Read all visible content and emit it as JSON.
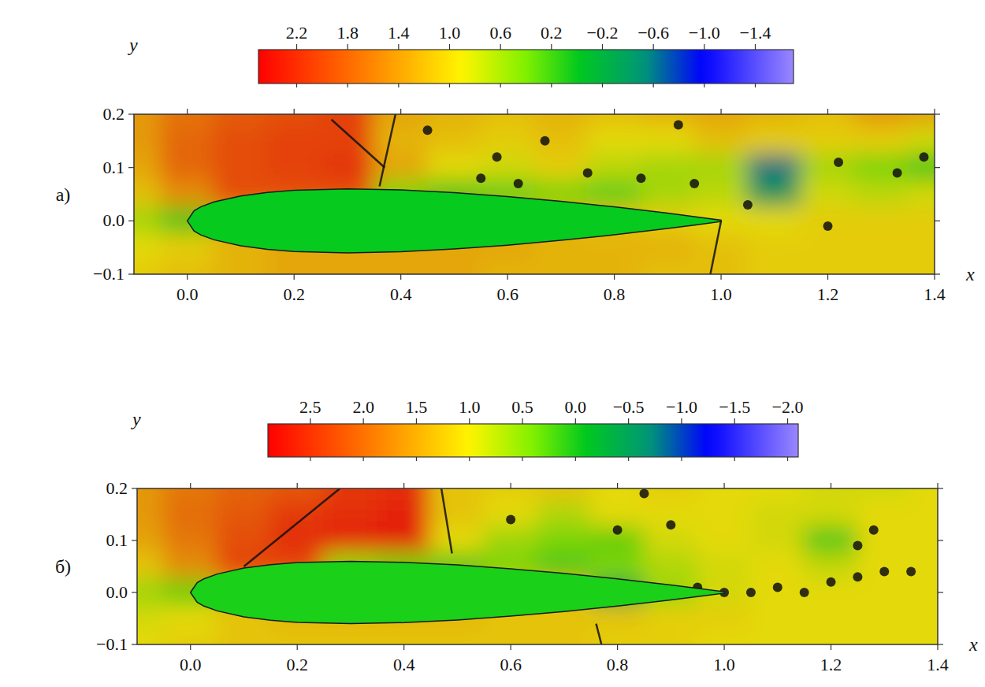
{
  "chart_data": [
    {
      "type": "heatmap",
      "panel": "а)",
      "x_label": "x",
      "y_label": "y",
      "xlim": [
        -0.1,
        1.4
      ],
      "ylim": [
        -0.1,
        0.2
      ],
      "xticks": [
        {
          "value": 0,
          "label": "0.0"
        },
        0.2,
        0.4,
        0.6,
        0.8,
        {
          "value": 1,
          "label": "1.0"
        },
        1.2,
        1.4
      ],
      "yticks": [
        {
          "value": -0.1,
          "label": "−0.1"
        },
        {
          "value": 0,
          "label": "0.0"
        },
        0.1,
        0.2
      ],
      "grid": false,
      "x": [
        -0.1,
        0,
        0.1,
        0.2,
        0.3,
        0.4,
        0.5,
        0.6,
        0.7,
        0.8,
        0.9,
        1.0,
        1.1,
        1.2,
        1.3,
        1.4
      ],
      "y": [
        0.2,
        0.15,
        0.1,
        0.05,
        0,
        -0.05,
        -0.1
      ],
      "values": [
        [
          1.4,
          1.7,
          1.9,
          2.0,
          2.1,
          1.3,
          1.2,
          1.1,
          1.2,
          1.1,
          1.2,
          1.3,
          1.2,
          1.1,
          1.4,
          1.3
        ],
        [
          1.4,
          1.8,
          2.0,
          2.1,
          2.1,
          1.2,
          1.1,
          1.0,
          1.1,
          0.9,
          0.9,
          1.1,
          1.0,
          1.0,
          1.0,
          0.8
        ],
        [
          1.3,
          1.8,
          2.0,
          2.1,
          2.2,
          1.3,
          0.9,
          0.8,
          1.0,
          0.7,
          0.6,
          0.6,
          -0.6,
          0.6,
          0.4,
          0.2
        ],
        [
          1.1,
          1.5,
          2.0,
          2.0,
          2.0,
          0.4,
          0.2,
          0.3,
          0.4,
          0.3,
          0.6,
          0.7,
          -0.4,
          0.8,
          0.7,
          0.8
        ],
        [
          0.6,
          0.2,
          1.3,
          1.3,
          1.3,
          1.3,
          1.2,
          1.2,
          1.2,
          1.1,
          1.0,
          0.9,
          0.9,
          1.0,
          1.0,
          1.0
        ],
        [
          0.9,
          1.0,
          1.2,
          1.3,
          1.3,
          1.3,
          1.3,
          1.3,
          1.2,
          1.2,
          1.2,
          1.1,
          1.0,
          1.0,
          1.0,
          1.0
        ],
        [
          1.0,
          1.1,
          1.2,
          1.3,
          1.3,
          1.3,
          1.3,
          1.2,
          1.2,
          1.2,
          1.1,
          1.1,
          1.0,
          1.0,
          1.0,
          1.0
        ]
      ],
      "color_range": [
        2.5,
        -1.7
      ],
      "color_ticks": [
        2.2,
        1.8,
        1.4,
        {
          "value": 1,
          "label": "1.0"
        },
        0.6,
        0.2,
        {
          "value": -0.2,
          "label": "−0.2"
        },
        {
          "value": -0.6,
          "label": "−0.6"
        },
        {
          "value": -1,
          "label": "−1.0"
        },
        {
          "value": -1.4,
          "label": "−1.4"
        }
      ],
      "airfoil": {
        "x": [
          0,
          0.0125,
          0.025,
          0.05,
          0.1,
          0.15,
          0.2,
          0.3,
          0.4,
          0.5,
          0.6,
          0.7,
          0.8,
          0.9,
          0.95,
          1.0
        ],
        "upper": [
          0,
          0.0189,
          0.0262,
          0.0355,
          0.0468,
          0.0534,
          0.0574,
          0.06,
          0.058,
          0.0529,
          0.0456,
          0.0366,
          0.0262,
          0.0145,
          0.0081,
          0.0013
        ],
        "lower": [
          0,
          -0.0189,
          -0.0262,
          -0.0355,
          -0.0468,
          -0.0534,
          -0.0574,
          -0.06,
          -0.058,
          -0.0529,
          -0.0456,
          -0.0366,
          -0.0262,
          -0.0145,
          -0.0081,
          -0.0013
        ],
        "value": 0
      },
      "shocks": [
        {
          "x": [
            0.39,
            0.36
          ],
          "y": [
            0.2,
            0.065
          ]
        },
        {
          "x": [
            0.27,
            0.37
          ],
          "y": [
            0.19,
            0.1
          ]
        },
        {
          "x": [
            0.98,
            1.0
          ],
          "y": [
            -0.1,
            0.0
          ]
        }
      ],
      "vortices": {
        "x": [
          0.45,
          0.55,
          0.58,
          0.62,
          0.67,
          0.75,
          0.85,
          0.95,
          1.05,
          1.2,
          1.22,
          1.33,
          1.38,
          0.92
        ],
        "y": [
          0.17,
          0.08,
          0.12,
          0.07,
          0.15,
          0.09,
          0.08,
          0.07,
          0.03,
          -0.01,
          0.11,
          0.09,
          0.12,
          0.18
        ]
      }
    },
    {
      "type": "heatmap",
      "panel": "б)",
      "x_label": "x",
      "y_label": "y",
      "xlim": [
        -0.1,
        1.4
      ],
      "ylim": [
        -0.1,
        0.2
      ],
      "xticks": [
        {
          "value": 0,
          "label": "0.0"
        },
        0.2,
        0.4,
        0.6,
        0.8,
        {
          "value": 1,
          "label": "1.0"
        },
        1.2,
        1.4
      ],
      "yticks": [
        {
          "value": -0.1,
          "label": "−0.1"
        },
        {
          "value": 0,
          "label": "0.0"
        },
        0.1,
        0.2
      ],
      "grid": false,
      "x": [
        -0.1,
        0,
        0.1,
        0.2,
        0.3,
        0.4,
        0.5,
        0.6,
        0.7,
        0.8,
        0.9,
        1.0,
        1.1,
        1.2,
        1.3,
        1.4
      ],
      "y": [
        0.2,
        0.15,
        0.1,
        0.05,
        0,
        -0.05,
        -0.1
      ],
      "values": [
        [
          1.6,
          1.9,
          2.1,
          2.2,
          2.5,
          2.6,
          1.2,
          1.1,
          1.2,
          1.0,
          1.1,
          1.0,
          1.0,
          0.9,
          0.9,
          1.0
        ],
        [
          1.6,
          2.0,
          2.2,
          2.5,
          2.6,
          2.7,
          1.2,
          1.0,
          0.7,
          1.0,
          1.0,
          1.0,
          0.9,
          0.9,
          1.0,
          1.0
        ],
        [
          1.5,
          1.9,
          2.3,
          2.6,
          2.7,
          2.8,
          1.0,
          0.6,
          0.4,
          0.3,
          0.9,
          1.0,
          0.9,
          0.2,
          1.0,
          1.0
        ],
        [
          1.2,
          1.7,
          2.4,
          2.4,
          0.5,
          0.3,
          0.2,
          0.4,
          0.2,
          0.4,
          0.7,
          0.9,
          1.0,
          0.8,
          1.0,
          1.0
        ],
        [
          0.6,
          0.3,
          1.4,
          1.4,
          1.4,
          1.3,
          1.3,
          1.2,
          1.2,
          -0.3,
          0.6,
          0.9,
          1.0,
          1.0,
          1.0,
          1.0
        ],
        [
          0.9,
          1.0,
          1.2,
          1.3,
          1.3,
          1.3,
          1.3,
          1.2,
          1.2,
          1.2,
          1.1,
          1.1,
          1.0,
          1.0,
          1.0,
          1.0
        ],
        [
          1.0,
          1.1,
          1.2,
          1.2,
          1.2,
          1.2,
          1.2,
          1.2,
          1.2,
          1.1,
          1.1,
          1.0,
          1.0,
          1.0,
          1.0,
          1.0
        ]
      ],
      "color_range": [
        2.9,
        -2.1
      ],
      "color_ticks": [
        2.5,
        {
          "value": 2,
          "label": "2.0"
        },
        1.5,
        {
          "value": 1,
          "label": "1.0"
        },
        0.5,
        {
          "value": 0,
          "label": "0.0"
        },
        {
          "value": -0.5,
          "label": "−0.5"
        },
        {
          "value": -1,
          "label": "−1.0"
        },
        {
          "value": -1.5,
          "label": "−1.5"
        },
        {
          "value": -2,
          "label": "−2.0"
        }
      ],
      "airfoil": {
        "x": [
          0,
          0.0125,
          0.025,
          0.05,
          0.1,
          0.15,
          0.2,
          0.3,
          0.4,
          0.5,
          0.6,
          0.7,
          0.8,
          0.9,
          0.95,
          1.0
        ],
        "upper": [
          0,
          0.0189,
          0.0262,
          0.0355,
          0.0468,
          0.0534,
          0.0574,
          0.06,
          0.058,
          0.0529,
          0.0456,
          0.0366,
          0.0262,
          0.0145,
          0.0081,
          0.0013
        ],
        "lower": [
          0,
          -0.0189,
          -0.0262,
          -0.0355,
          -0.0468,
          -0.0534,
          -0.0574,
          -0.06,
          -0.058,
          -0.0529,
          -0.0456,
          -0.0366,
          -0.0262,
          -0.0145,
          -0.0081,
          -0.0013
        ],
        "value": 0
      },
      "shocks": [
        {
          "x": [
            0.1,
            0.28
          ],
          "y": [
            0.05,
            0.2
          ]
        },
        {
          "x": [
            0.47,
            0.49
          ],
          "y": [
            0.2,
            0.075
          ]
        },
        {
          "x": [
            0.77,
            0.76
          ],
          "y": [
            -0.1,
            -0.06
          ]
        }
      ],
      "vortices": {
        "x": [
          0.6,
          0.8,
          0.85,
          0.9,
          0.95,
          1.0,
          1.05,
          1.1,
          1.15,
          1.2,
          1.25,
          1.3,
          1.35,
          1.25,
          1.28
        ],
        "y": [
          0.14,
          0.12,
          0.19,
          0.13,
          0.01,
          0.0,
          0.0,
          0.01,
          0.0,
          0.02,
          0.03,
          0.04,
          0.04,
          0.09,
          0.12
        ]
      }
    }
  ]
}
